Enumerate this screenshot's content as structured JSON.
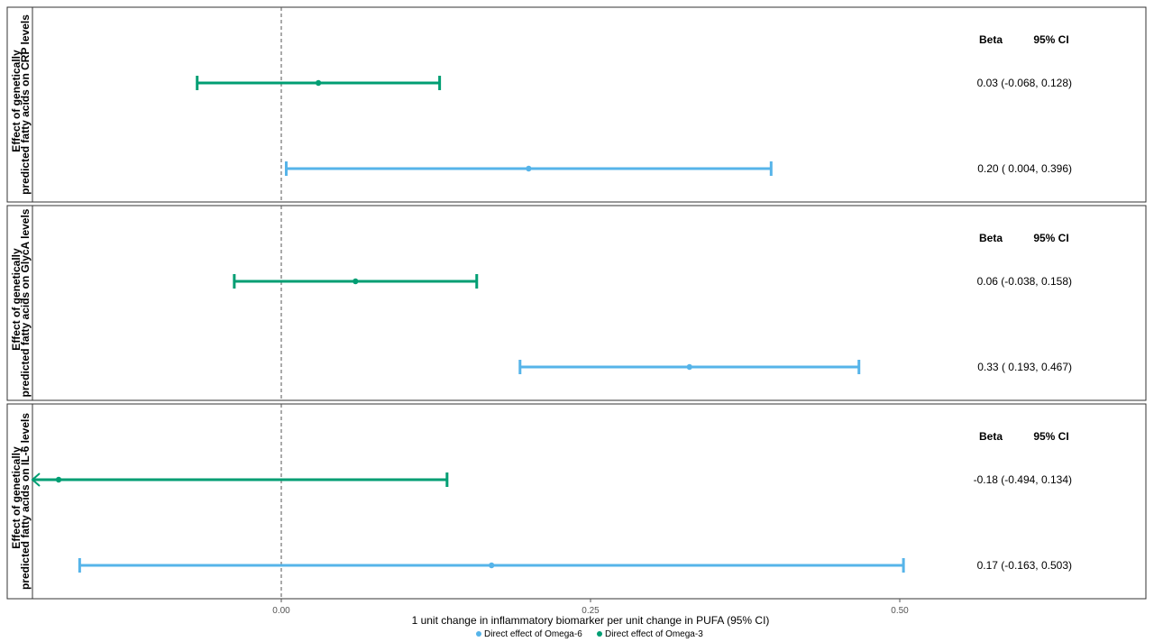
{
  "chart_data": {
    "type": "forest",
    "xlabel": "1 unit change in inflammatory biomarker per unit change in PUFA (95% CI)",
    "x_ticks": [
      0.0,
      0.25,
      0.5
    ],
    "x_tick_labels": [
      "0.00",
      "0.25",
      "0.50"
    ],
    "xlim": [
      -0.2,
      0.7
    ],
    "reference_line": 0,
    "legend": [
      {
        "name": "Direct effect of Omega-6",
        "color": "#56b4e9"
      },
      {
        "name": "Direct effect of Omega-3",
        "color": "#009e73"
      }
    ],
    "table_headers": {
      "beta": "Beta",
      "ci": "95% CI"
    },
    "panels": [
      {
        "label_line1": "Effect of genetically",
        "label_line2": "predicted fatty acids on CRP levels",
        "rows": [
          {
            "series": "Omega-3",
            "color": "#009e73",
            "beta": 0.03,
            "lower": -0.068,
            "upper": 0.128,
            "text": "0.03 (-0.068, 0.128)"
          },
          {
            "series": "Omega-6",
            "color": "#56b4e9",
            "beta": 0.2,
            "lower": 0.004,
            "upper": 0.396,
            "text": "0.20 ( 0.004, 0.396)"
          }
        ]
      },
      {
        "label_line1": "Effect of genetically",
        "label_line2": "predicted fatty acids on GlycA levels",
        "rows": [
          {
            "series": "Omega-3",
            "color": "#009e73",
            "beta": 0.06,
            "lower": -0.038,
            "upper": 0.158,
            "text": "0.06 (-0.038, 0.158)"
          },
          {
            "series": "Omega-6",
            "color": "#56b4e9",
            "beta": 0.33,
            "lower": 0.193,
            "upper": 0.467,
            "text": "0.33 ( 0.193, 0.467)"
          }
        ]
      },
      {
        "label_line1": "Effect of genetically",
        "label_line2": "predicted fatty acids on IL-6 levels",
        "rows": [
          {
            "series": "Omega-3",
            "color": "#009e73",
            "beta": -0.18,
            "lower": -0.494,
            "upper": 0.134,
            "text": "-0.18 (-0.494, 0.134)"
          },
          {
            "series": "Omega-6",
            "color": "#56b4e9",
            "beta": 0.17,
            "lower": -0.163,
            "upper": 0.503,
            "text": "0.17 (-0.163, 0.503)"
          }
        ]
      }
    ]
  }
}
